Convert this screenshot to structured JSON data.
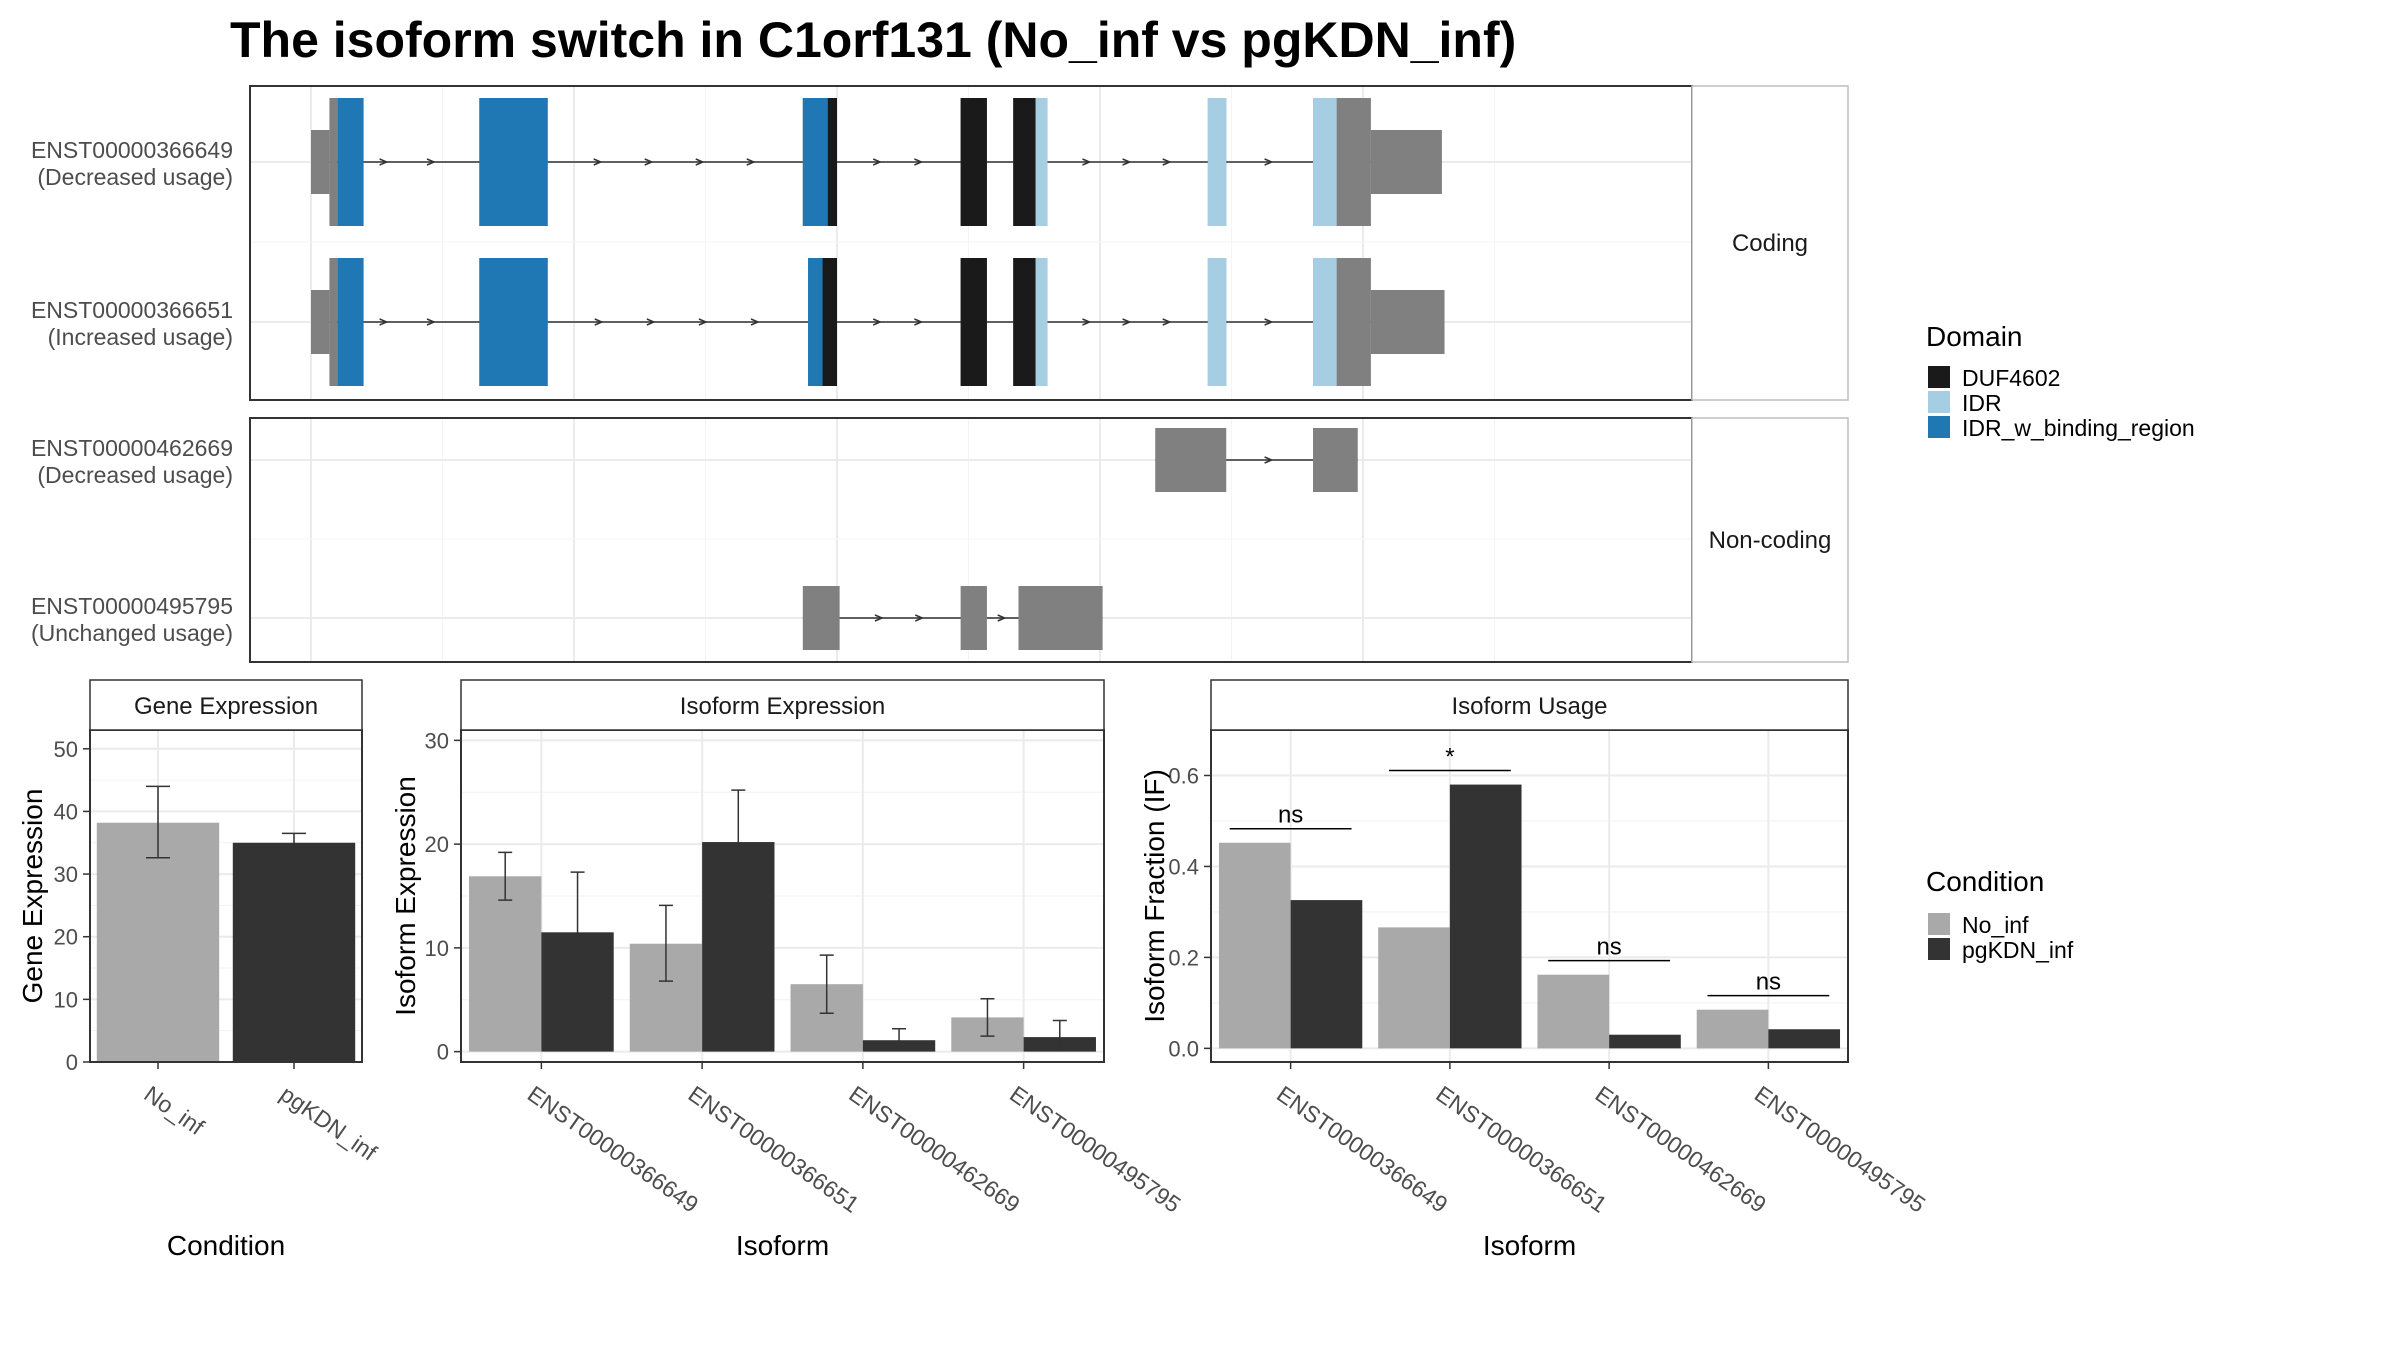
{
  "title": "The isoform switch in C1orf131 (No_inf vs pgKDN_inf)",
  "colors": {
    "DUF4602": "#1a1a1a",
    "IDR": "#a6cee3",
    "IDR_w_binding_region": "#1f78b4",
    "utr": "#808080",
    "noncoding_exon": "#808080",
    "No_inf": "#a9a9a9",
    "pgKDN_inf": "#333333"
  },
  "transcript_structure": {
    "x_range": [
      0,
      1000
    ],
    "gridlines": [
      0,
      200,
      400,
      600,
      800
    ],
    "groups": [
      {
        "label": "Coding",
        "transcripts": [
          {
            "id": "ENST00000366649",
            "usage": "(Decreased usage)",
            "exons": [
              {
                "start": 0,
                "end": 14,
                "h": "utr"
              },
              {
                "start": 14,
                "end": 20,
                "h": "cds"
              },
              {
                "start": 128,
                "end": 180,
                "h": "cds"
              },
              {
                "start": 374,
                "end": 400,
                "h": "cds"
              },
              {
                "start": 494,
                "end": 514,
                "h": "cds"
              },
              {
                "start": 534,
                "end": 560,
                "h": "cds"
              },
              {
                "start": 682,
                "end": 696,
                "h": "cds"
              },
              {
                "start": 762,
                "end": 806,
                "h": "cds"
              },
              {
                "start": 806,
                "end": 860,
                "h": "utr"
              }
            ],
            "domains": [
              {
                "start": 20,
                "end": 40,
                "name": "IDR_w_binding_region"
              },
              {
                "start": 128,
                "end": 180,
                "name": "IDR_w_binding_region"
              },
              {
                "start": 374,
                "end": 393,
                "name": "IDR_w_binding_region"
              },
              {
                "start": 393,
                "end": 400,
                "name": "DUF4602"
              },
              {
                "start": 494,
                "end": 514,
                "name": "DUF4602"
              },
              {
                "start": 534,
                "end": 551,
                "name": "DUF4602"
              },
              {
                "start": 551,
                "end": 560,
                "name": "IDR"
              },
              {
                "start": 682,
                "end": 696,
                "name": "IDR"
              },
              {
                "start": 762,
                "end": 780,
                "name": "IDR"
              }
            ]
          },
          {
            "id": "ENST00000366651",
            "usage": "(Increased usage)",
            "exons": [
              {
                "start": 0,
                "end": 14,
                "h": "utr"
              },
              {
                "start": 14,
                "end": 20,
                "h": "cds"
              },
              {
                "start": 128,
                "end": 180,
                "h": "cds"
              },
              {
                "start": 378,
                "end": 400,
                "h": "cds"
              },
              {
                "start": 494,
                "end": 514,
                "h": "cds"
              },
              {
                "start": 534,
                "end": 560,
                "h": "cds"
              },
              {
                "start": 682,
                "end": 696,
                "h": "cds"
              },
              {
                "start": 762,
                "end": 806,
                "h": "cds"
              },
              {
                "start": 806,
                "end": 862,
                "h": "utr"
              }
            ],
            "domains": [
              {
                "start": 20,
                "end": 40,
                "name": "IDR_w_binding_region"
              },
              {
                "start": 128,
                "end": 180,
                "name": "IDR_w_binding_region"
              },
              {
                "start": 378,
                "end": 389,
                "name": "IDR_w_binding_region"
              },
              {
                "start": 389,
                "end": 400,
                "name": "DUF4602"
              },
              {
                "start": 494,
                "end": 514,
                "name": "DUF4602"
              },
              {
                "start": 534,
                "end": 551,
                "name": "DUF4602"
              },
              {
                "start": 551,
                "end": 560,
                "name": "IDR"
              },
              {
                "start": 682,
                "end": 696,
                "name": "IDR"
              },
              {
                "start": 762,
                "end": 780,
                "name": "IDR"
              }
            ]
          }
        ]
      },
      {
        "label": "Non-coding",
        "transcripts": [
          {
            "id": "ENST00000462669",
            "usage": "(Decreased usage)",
            "exons": [
              {
                "start": 642,
                "end": 696,
                "h": "nc"
              },
              {
                "start": 762,
                "end": 796,
                "h": "nc"
              }
            ],
            "domains": []
          },
          {
            "id": "ENST00000495795",
            "usage": "(Unchanged usage)",
            "exons": [
              {
                "start": 374,
                "end": 402,
                "h": "nc"
              },
              {
                "start": 494,
                "end": 514,
                "h": "nc"
              },
              {
                "start": 538,
                "end": 602,
                "h": "nc"
              }
            ],
            "domains": []
          }
        ]
      }
    ]
  },
  "domain_legend": {
    "title": "Domain",
    "items": [
      "DUF4602",
      "IDR",
      "IDR_w_binding_region"
    ]
  },
  "condition_legend": {
    "title": "Condition",
    "items": [
      "No_inf",
      "pgKDN_inf"
    ]
  },
  "chart_data": [
    {
      "type": "bar",
      "title": "Gene Expression",
      "xlabel": "Condition",
      "ylabel": "Gene Expression",
      "ylim": [
        0,
        53
      ],
      "yticks": [
        0,
        10,
        20,
        30,
        40,
        50
      ],
      "yticklabels": [
        "0",
        "10",
        "20",
        "30",
        "40",
        "50"
      ],
      "categories": [
        "No_inf",
        "pgKDN_inf"
      ],
      "values": [
        38.2,
        35.0
      ],
      "errors": [
        [
          32.6,
          44.0
        ],
        [
          33.6,
          36.5
        ]
      ]
    },
    {
      "type": "bar",
      "title": "Isoform Expression",
      "xlabel": "Isoform",
      "ylabel": "Isoform Expression",
      "ylim": [
        -1,
        31
      ],
      "yticks": [
        0,
        10,
        20,
        30
      ],
      "yticklabels": [
        "0",
        "10",
        "20",
        "30"
      ],
      "categories": [
        "ENST00000366649",
        "ENST00000366651",
        "ENST00000462669",
        "ENST00000495795"
      ],
      "series": [
        {
          "name": "No_inf",
          "values": [
            16.9,
            10.4,
            6.5,
            3.3
          ],
          "errors": [
            [
              14.6,
              19.2
            ],
            [
              6.8,
              14.1
            ],
            [
              3.7,
              9.3
            ],
            [
              1.5,
              5.1
            ]
          ]
        },
        {
          "name": "pgKDN_inf",
          "values": [
            11.5,
            20.2,
            1.1,
            1.4
          ],
          "errors": [
            [
              5.7,
              17.3
            ],
            [
              15.2,
              25.2
            ],
            [
              0.2,
              2.2
            ],
            [
              0.1,
              3.0
            ]
          ]
        }
      ]
    },
    {
      "type": "bar",
      "title": "Isoform Usage",
      "xlabel": "Isoform",
      "ylabel": "Isoform Fraction (IF)",
      "ylim": [
        -0.03,
        0.7
      ],
      "yticks": [
        0,
        0.2,
        0.4,
        0.6
      ],
      "yticklabels": [
        "0.0",
        "0.2",
        "0.4",
        "0.6"
      ],
      "categories": [
        "ENST00000366649",
        "ENST00000366651",
        "ENST00000462669",
        "ENST00000495795"
      ],
      "series": [
        {
          "name": "No_inf",
          "values": [
            0.452,
            0.266,
            0.162,
            0.085
          ]
        },
        {
          "name": "pgKDN_inf",
          "values": [
            0.326,
            0.58,
            0.03,
            0.042
          ]
        }
      ],
      "significance": [
        {
          "label": "ns",
          "y": 0.483
        },
        {
          "label": "*",
          "y": 0.611
        },
        {
          "label": "ns",
          "y": 0.193
        },
        {
          "label": "ns",
          "y": 0.116
        }
      ]
    }
  ]
}
